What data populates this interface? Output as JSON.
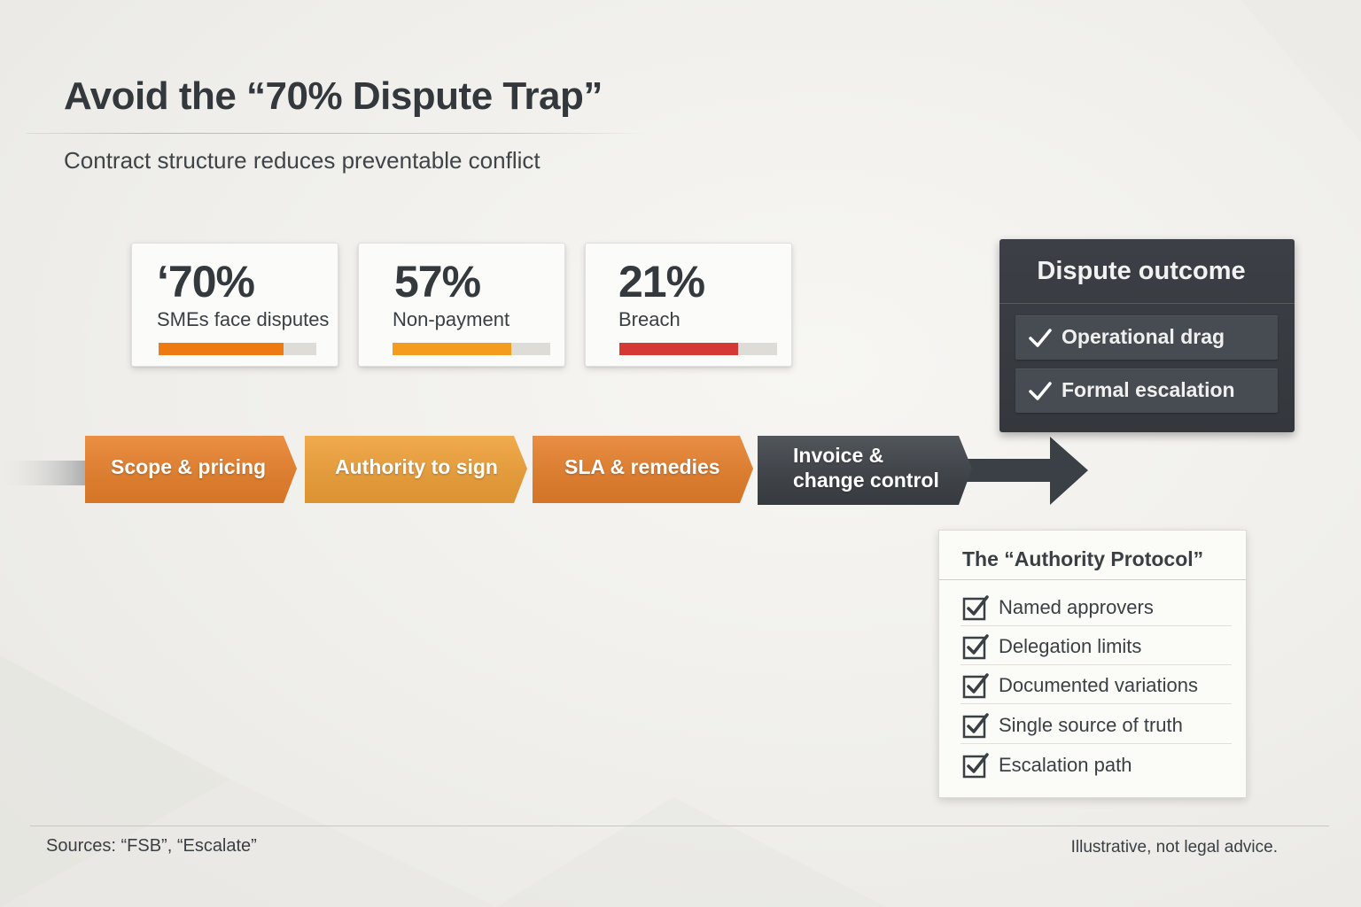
{
  "header": {
    "title": "Avoid the “70% Dispute Trap”",
    "subtitle": "Contract structure reduces preventable conflict"
  },
  "stats": [
    {
      "value": "‘70%",
      "label": "SMEs face disputes",
      "fill_fraction": 0.79,
      "color": "#ee7a12"
    },
    {
      "value": "57%",
      "label": "Non-payment",
      "fill_fraction": 0.75,
      "color": "#f39c1d"
    },
    {
      "value": "21%",
      "label": "Breach",
      "fill_fraction": 0.75,
      "color": "#d43a33"
    }
  ],
  "flow": {
    "steps": [
      {
        "label": "Scope & pricing",
        "color": "#e8802a"
      },
      {
        "label": "Authority to sign",
        "color": "#efa037"
      },
      {
        "label": "SLA & remedies",
        "color": "#e67f2b"
      },
      {
        "label_lines": [
          "Invoice &",
          "change control"
        ],
        "color": "#3b4046"
      }
    ]
  },
  "outcome": {
    "title": "Dispute outcome",
    "items": [
      "Operational drag",
      "Formal escalation"
    ]
  },
  "protocol": {
    "title": "The “Authority Protocol”",
    "items": [
      "Named approvers",
      "Delegation limits",
      "Documented variations",
      "Single source of truth",
      "Escalation path"
    ]
  },
  "footer": {
    "sources": "Sources: “FSB”, “Escalate”",
    "disclaimer": "Illustrative, not legal advice."
  }
}
